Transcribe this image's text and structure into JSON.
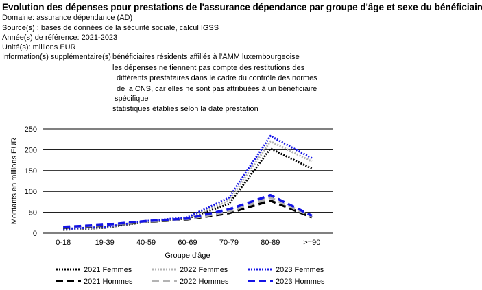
{
  "header": {
    "title": "Evolution des dépenses pour prestations de l'assurance dépendance par groupe d'âge et sexe du bénéficiaire",
    "domain": "Domaine: assurance dépendance (AD)",
    "source": "Source(s) : bases de données de la sécurité sociale, calcul IGSS",
    "year": "Année(s) de référence: 2021-2023",
    "unit": "Unité(s): millions EUR",
    "info_label": "Information(s) supplémentaire(s):",
    "info_lines": [
      "bénéficiaires résidents affiliés à l'AMM luxembourgeoise",
      "les dépenses ne tiennent pas compte des restitutions des",
      "différents prestataires dans le cadre du contrôle des normes",
      "de la CNS, car elles ne sont pas attribuées à un bénéficiaire",
      "spécifique",
      "statistiques établies selon la date prestation"
    ]
  },
  "chart_data": {
    "type": "line",
    "categories": [
      "0-18",
      "19-39",
      "40-59",
      "60-69",
      "70-79",
      "80-89",
      ">=90"
    ],
    "xlabel": "Groupe d'âge",
    "ylabel": "Montants en millions EUR",
    "ylim": [
      0,
      250
    ],
    "yticks": [
      "0",
      "50",
      "100",
      "150",
      "200",
      "250"
    ],
    "grid": "horizontal",
    "legend_position": "bottom",
    "series": [
      {
        "name": "2021 Femmes",
        "color": "#000000",
        "style": "dotted",
        "values": [
          8,
          13,
          27,
          35,
          70,
          203,
          155
        ]
      },
      {
        "name": "2022 Femmes",
        "color": "#b3b3b3",
        "style": "dotted",
        "values": [
          9,
          14,
          28,
          36,
          78,
          220,
          172
        ]
      },
      {
        "name": "2023 Femmes",
        "color": "#1414e6",
        "style": "dotted",
        "values": [
          10,
          15,
          29,
          38,
          85,
          233,
          180
        ]
      },
      {
        "name": "2021 Hommes",
        "color": "#000000",
        "style": "dashed",
        "values": [
          13,
          18,
          27,
          33,
          48,
          78,
          38
        ]
      },
      {
        "name": "2022 Hommes",
        "color": "#b3b3b3",
        "style": "dashed",
        "values": [
          14,
          19,
          28,
          34,
          52,
          85,
          40
        ]
      },
      {
        "name": "2023 Hommes",
        "color": "#1414e6",
        "style": "dashed",
        "values": [
          15,
          20,
          29,
          35,
          57,
          91,
          42
        ]
      }
    ]
  }
}
